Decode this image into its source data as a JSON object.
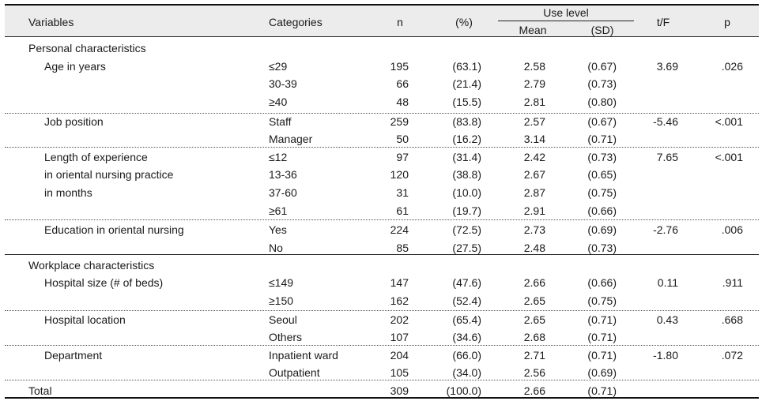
{
  "table": {
    "headers": {
      "variables": "Variables",
      "categories": "Categories",
      "n": "n",
      "pct": "(%)",
      "use_level": "Use  level",
      "mean": "Mean",
      "sd": "(SD)",
      "tf": "t/F",
      "p": "p"
    },
    "groups": [
      {
        "label": "Personal characteristics"
      },
      {
        "label": "Workplace characteristics"
      }
    ],
    "rows": [
      {
        "label": "Age  in  years",
        "category": "≤29",
        "n": "195",
        "pct": "(63.1)",
        "mean": "2.58",
        "sd": "(0.67)",
        "tf": "3.69",
        "p": ".026"
      },
      {
        "label": "",
        "category": "30-39",
        "n": "66",
        "pct": "(21.4)",
        "mean": "2.79",
        "sd": "(0.73)",
        "tf": "",
        "p": ""
      },
      {
        "label": "",
        "category": "≥40",
        "n": "48",
        "pct": "(15.5)",
        "mean": "2.81",
        "sd": "(0.80)",
        "tf": "",
        "p": ""
      },
      {
        "label": "Job  position",
        "category": "Staff",
        "n": "259",
        "pct": "(83.8)",
        "mean": "2.57",
        "sd": "(0.67)",
        "tf": "-5.46",
        "p": "<.001"
      },
      {
        "label": "",
        "category": "Manager",
        "n": "50",
        "pct": "(16.2)",
        "mean": "3.14",
        "sd": "(0.71)",
        "tf": "",
        "p": ""
      },
      {
        "label": "Length  of  experience",
        "category": "≤12",
        "n": "97",
        "pct": "(31.4)",
        "mean": "2.42",
        "sd": "(0.73)",
        "tf": "7.65",
        "p": "<.001"
      },
      {
        "label": "in  oriental  nursing  practice",
        "category": "13-36",
        "n": "120",
        "pct": "(38.8)",
        "mean": "2.67",
        "sd": "(0.65)",
        "tf": "",
        "p": ""
      },
      {
        "label": "in  months",
        "category": "37-60",
        "n": "31",
        "pct": "(10.0)",
        "mean": "2.87",
        "sd": "(0.75)",
        "tf": "",
        "p": ""
      },
      {
        "label": "",
        "category": "≥61",
        "n": "61",
        "pct": "(19.7)",
        "mean": "2.91",
        "sd": "(0.66)",
        "tf": "",
        "p": ""
      },
      {
        "label": "Education  in  oriental  nursing",
        "category": "Yes",
        "n": "224",
        "pct": "(72.5)",
        "mean": "2.73",
        "sd": "(0.69)",
        "tf": "-2.76",
        "p": ".006"
      },
      {
        "label": "",
        "category": "No",
        "n": "85",
        "pct": "(27.5)",
        "mean": "2.48",
        "sd": "(0.73)",
        "tf": "",
        "p": ""
      },
      {
        "label": "Hospital  size    (#  of  beds)",
        "category": "≤149",
        "n": "147",
        "pct": "(47.6)",
        "mean": "2.66",
        "sd": "(0.66)",
        "tf": "0.11",
        "p": ".911"
      },
      {
        "label": "",
        "category": "≥150",
        "n": "162",
        "pct": "(52.4)",
        "mean": "2.65",
        "sd": "(0.75)",
        "tf": "",
        "p": ""
      },
      {
        "label": "Hospital  location",
        "category": "Seoul",
        "n": "202",
        "pct": "(65.4)",
        "mean": "2.65",
        "sd": "(0.71)",
        "tf": "0.43",
        "p": ".668"
      },
      {
        "label": "",
        "category": "Others",
        "n": "107",
        "pct": "(34.6)",
        "mean": "2.68",
        "sd": "(0.71)",
        "tf": "",
        "p": ""
      },
      {
        "label": "Department",
        "category": "Inpatient  ward",
        "n": "204",
        "pct": "(66.0)",
        "mean": "2.71",
        "sd": "(0.71)",
        "tf": "-1.80",
        "p": ".072"
      },
      {
        "label": "",
        "category": "Outpatient",
        "n": "105",
        "pct": "(34.0)",
        "mean": "2.56",
        "sd": "(0.69)",
        "tf": "",
        "p": ""
      },
      {
        "label": "Total",
        "category": "",
        "n": "309",
        "pct": "(100.0)",
        "mean": "2.66",
        "sd": "(0.71)",
        "tf": "",
        "p": ""
      }
    ]
  }
}
